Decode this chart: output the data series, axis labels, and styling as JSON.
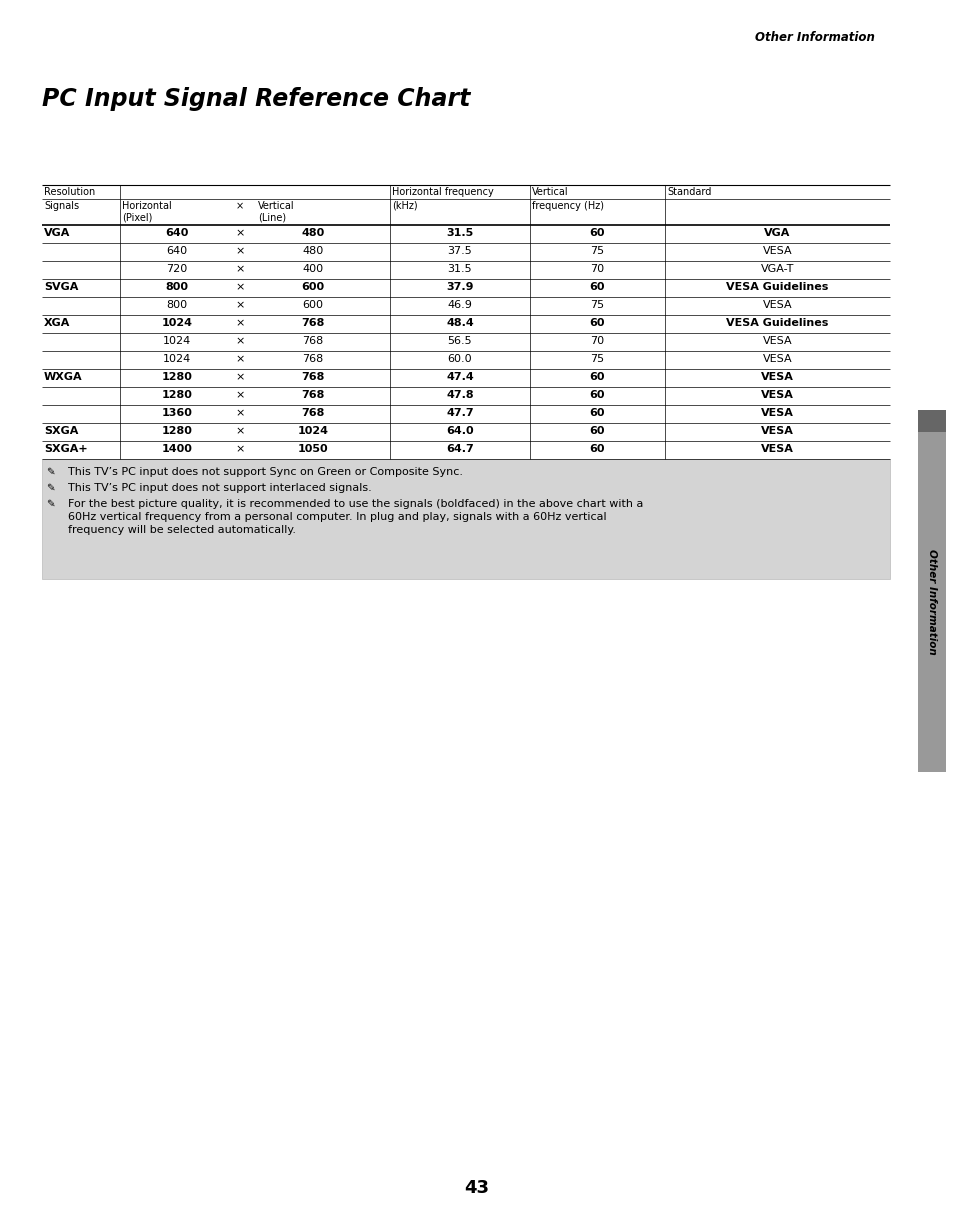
{
  "title": "PC Input Signal Reference Chart",
  "header_top": "Other Information",
  "page_number": "43",
  "sidebar_text": "Other Information",
  "rows": [
    {
      "signal": "VGA",
      "h": "640",
      "v": "480",
      "hf": "31.5",
      "vf": "60",
      "std": "VGA",
      "bold": true
    },
    {
      "signal": "",
      "h": "640",
      "v": "480",
      "hf": "37.5",
      "vf": "75",
      "std": "VESA",
      "bold": false
    },
    {
      "signal": "",
      "h": "720",
      "v": "400",
      "hf": "31.5",
      "vf": "70",
      "std": "VGA-T",
      "bold": false
    },
    {
      "signal": "SVGA",
      "h": "800",
      "v": "600",
      "hf": "37.9",
      "vf": "60",
      "std": "VESA Guidelines",
      "bold": true
    },
    {
      "signal": "",
      "h": "800",
      "v": "600",
      "hf": "46.9",
      "vf": "75",
      "std": "VESA",
      "bold": false
    },
    {
      "signal": "XGA",
      "h": "1024",
      "v": "768",
      "hf": "48.4",
      "vf": "60",
      "std": "VESA Guidelines",
      "bold": true
    },
    {
      "signal": "",
      "h": "1024",
      "v": "768",
      "hf": "56.5",
      "vf": "70",
      "std": "VESA",
      "bold": false
    },
    {
      "signal": "",
      "h": "1024",
      "v": "768",
      "hf": "60.0",
      "vf": "75",
      "std": "VESA",
      "bold": false
    },
    {
      "signal": "WXGA",
      "h": "1280",
      "v": "768",
      "hf": "47.4",
      "vf": "60",
      "std": "VESA",
      "bold": true
    },
    {
      "signal": "",
      "h": "1280",
      "v": "768",
      "hf": "47.8",
      "vf": "60",
      "std": "VESA",
      "bold": true
    },
    {
      "signal": "",
      "h": "1360",
      "v": "768",
      "hf": "47.7",
      "vf": "60",
      "std": "VESA",
      "bold": true
    },
    {
      "signal": "SXGA",
      "h": "1280",
      "v": "1024",
      "hf": "64.0",
      "vf": "60",
      "std": "VESA",
      "bold": true
    },
    {
      "signal": "SXGA+",
      "h": "1400",
      "v": "1050",
      "hf": "64.7",
      "vf": "60",
      "std": "VESA",
      "bold": true
    }
  ],
  "notes": [
    "This TV’s PC input does not support Sync on Green or Composite Sync.",
    "This TV’s PC input does not support interlaced signals.",
    "For the best picture quality, it is recommended to use the signals (boldfaced) in the above chart with a\n60Hz vertical frequency from a personal computer. In plug and play, signals with a 60Hz vertical\nfrequency will be selected automatically."
  ],
  "bg_color": "#ffffff",
  "note_bg": "#d4d4d4",
  "sidebar_bg": "#999999",
  "sidebar_tab_bg": "#666666"
}
